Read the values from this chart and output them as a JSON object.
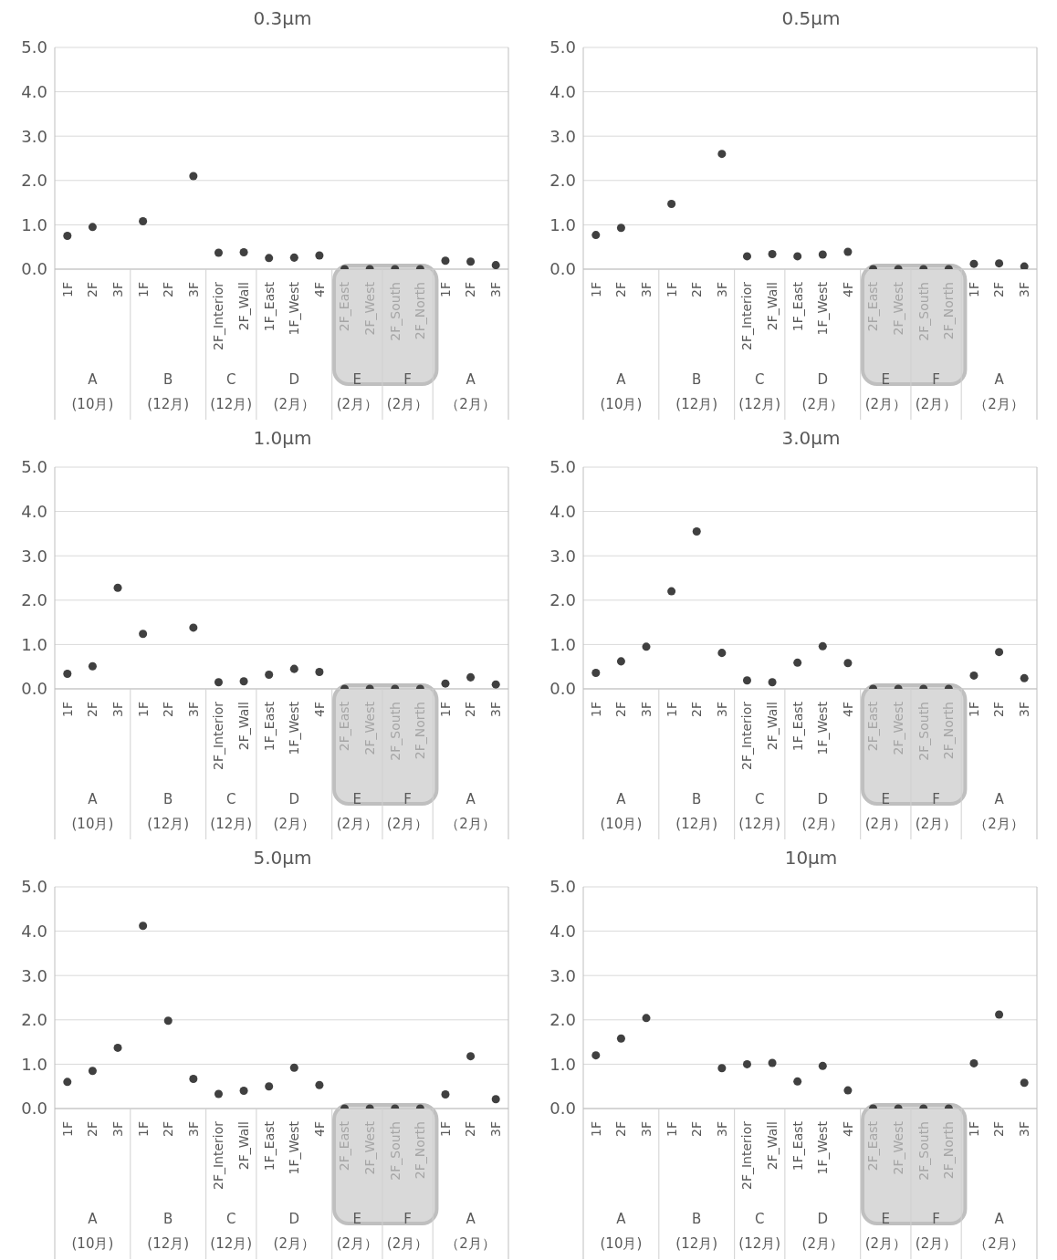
{
  "chart_data": [
    {
      "type": "scatter",
      "title": "0.3μm",
      "categories": [
        "1F",
        "2F",
        "3F",
        "1F",
        "2F",
        "3F",
        "2F_Interior",
        "2F_Wall",
        "1F_East",
        "1F_West",
        "4F",
        "2F_East",
        "2F_West",
        "2F_South",
        "2F_North",
        "1F",
        "2F",
        "3F"
      ],
      "values": [
        0.75,
        0.95,
        null,
        1.08,
        null,
        2.1,
        0.37,
        0.38,
        0.25,
        0.26,
        0.31,
        0,
        0,
        0,
        0,
        0.19,
        0.17,
        0.09
      ],
      "color": "#404040",
      "marker": "circle",
      "ylim": [
        0,
        5
      ],
      "yticks": [
        {
          "value": 0,
          "label": "0.0"
        },
        {
          "value": 1,
          "label": "1.0"
        },
        {
          "value": 2,
          "label": "2.0"
        },
        {
          "value": 3,
          "label": "3.0"
        },
        {
          "value": 4,
          "label": "4.0"
        },
        {
          "value": 5,
          "label": "5.0"
        }
      ],
      "grid": "y",
      "annotations": [
        "A\n(10月)",
        "B\n(12月)",
        "C\n(12月)",
        "D\n(2月）",
        "E\n(2月）",
        "F\n(2月）",
        "A\n（2月）"
      ]
    },
    {
      "type": "scatter",
      "title": "0.5μm",
      "categories": [
        "1F",
        "2F",
        "3F",
        "1F",
        "2F",
        "3F",
        "2F_Interior",
        "2F_Wall",
        "1F_East",
        "1F_West",
        "4F",
        "2F_East",
        "2F_West",
        "2F_South",
        "2F_North",
        "1F",
        "2F",
        "3F"
      ],
      "values": [
        0.77,
        0.93,
        null,
        1.47,
        null,
        2.6,
        0.29,
        0.34,
        0.29,
        0.33,
        0.39,
        0,
        0,
        0,
        0,
        0.12,
        0.13,
        0.06
      ],
      "color": "#404040",
      "marker": "circle",
      "ylim": [
        0,
        5
      ],
      "yticks": [
        {
          "value": 0,
          "label": "0.0"
        },
        {
          "value": 1,
          "label": "1.0"
        },
        {
          "value": 2,
          "label": "2.0"
        },
        {
          "value": 3,
          "label": "3.0"
        },
        {
          "value": 4,
          "label": "4.0"
        },
        {
          "value": 5,
          "label": "5.0"
        }
      ],
      "grid": "y",
      "annotations": [
        "A\n(10月)",
        "B\n(12月)",
        "C\n(12月)",
        "D\n(2月）",
        "E\n(2月）",
        "F\n(2月）",
        "A\n（2月）"
      ]
    },
    {
      "type": "scatter",
      "title": "1.0μm",
      "categories": [
        "1F",
        "2F",
        "3F",
        "1F",
        "2F",
        "3F",
        "2F_Interior",
        "2F_Wall",
        "1F_East",
        "1F_West",
        "4F",
        "2F_East",
        "2F_West",
        "2F_South",
        "2F_North",
        "1F",
        "2F",
        "3F"
      ],
      "values": [
        0.34,
        0.51,
        2.28,
        1.24,
        null,
        1.38,
        0.15,
        0.17,
        0.32,
        0.45,
        0.38,
        0,
        0,
        0,
        0,
        0.12,
        0.26,
        0.1
      ],
      "color": "#404040",
      "marker": "circle",
      "ylim": [
        0,
        5
      ],
      "yticks": [
        {
          "value": 0,
          "label": "0.0"
        },
        {
          "value": 1,
          "label": "1.0"
        },
        {
          "value": 2,
          "label": "2.0"
        },
        {
          "value": 3,
          "label": "3.0"
        },
        {
          "value": 4,
          "label": "4.0"
        },
        {
          "value": 5,
          "label": "5.0"
        }
      ],
      "grid": "y",
      "annotations": [
        "A\n(10月)",
        "B\n(12月)",
        "C\n(12月)",
        "D\n(2月）",
        "E\n(2月）",
        "F\n(2月）",
        "A\n（2月）"
      ]
    },
    {
      "type": "scatter",
      "title": "3.0μm",
      "categories": [
        "1F",
        "2F",
        "3F",
        "1F",
        "2F",
        "3F",
        "2F_Interior",
        "2F_Wall",
        "1F_East",
        "1F_West",
        "4F",
        "2F_East",
        "2F_West",
        "2F_South",
        "2F_North",
        "1F",
        "2F",
        "3F"
      ],
      "values": [
        0.36,
        0.62,
        0.95,
        2.2,
        3.55,
        0.81,
        0.19,
        0.15,
        0.59,
        0.96,
        0.58,
        0,
        0,
        0,
        0,
        0.3,
        0.83,
        0.24
      ],
      "color": "#404040",
      "marker": "circle",
      "ylim": [
        0,
        5
      ],
      "yticks": [
        {
          "value": 0,
          "label": "0.0"
        },
        {
          "value": 1,
          "label": "1.0"
        },
        {
          "value": 2,
          "label": "2.0"
        },
        {
          "value": 3,
          "label": "3.0"
        },
        {
          "value": 4,
          "label": "4.0"
        },
        {
          "value": 5,
          "label": "5.0"
        }
      ],
      "grid": "y",
      "annotations": [
        "A\n(10月)",
        "B\n(12月)",
        "C\n(12月)",
        "D\n(2月）",
        "E\n(2月）",
        "F\n(2月）",
        "A\n（2月）"
      ]
    },
    {
      "type": "scatter",
      "title": "5.0μm",
      "categories": [
        "1F",
        "2F",
        "3F",
        "1F",
        "2F",
        "3F",
        "2F_Interior",
        "2F_Wall",
        "1F_East",
        "1F_West",
        "4F",
        "2F_East",
        "2F_West",
        "2F_South",
        "2F_North",
        "1F",
        "2F",
        "3F"
      ],
      "values": [
        0.6,
        0.85,
        1.37,
        4.12,
        1.98,
        0.67,
        0.33,
        0.4,
        0.5,
        0.92,
        0.53,
        0,
        0,
        0,
        0,
        0.32,
        1.18,
        0.21
      ],
      "color": "#404040",
      "marker": "circle",
      "ylim": [
        0,
        5
      ],
      "yticks": [
        {
          "value": 0,
          "label": "0.0"
        },
        {
          "value": 1,
          "label": "1.0"
        },
        {
          "value": 2,
          "label": "2.0"
        },
        {
          "value": 3,
          "label": "3.0"
        },
        {
          "value": 4,
          "label": "4.0"
        },
        {
          "value": 5,
          "label": "5.0"
        }
      ],
      "grid": "y",
      "annotations": [
        "A\n(10月)",
        "B\n(12月)",
        "C\n(12月)",
        "D\n(2月）",
        "E\n(2月）",
        "F\n(2月）",
        "A\n（2月）"
      ]
    },
    {
      "type": "scatter",
      "title": "10μm",
      "categories": [
        "1F",
        "2F",
        "3F",
        "1F",
        "2F",
        "3F",
        "2F_Interior",
        "2F_Wall",
        "1F_East",
        "1F_West",
        "4F",
        "2F_East",
        "2F_West",
        "2F_South",
        "2F_North",
        "1F",
        "2F",
        "3F"
      ],
      "values": [
        1.2,
        1.58,
        2.04,
        null,
        null,
        0.91,
        1.0,
        1.03,
        0.61,
        0.96,
        0.41,
        0,
        0,
        0,
        0,
        1.02,
        2.12,
        0.58
      ],
      "color": "#404040",
      "marker": "circle",
      "ylim": [
        0,
        5
      ],
      "yticks": [
        {
          "value": 0,
          "label": "0.0"
        },
        {
          "value": 1,
          "label": "1.0"
        },
        {
          "value": 2,
          "label": "2.0"
        },
        {
          "value": 3,
          "label": "3.0"
        },
        {
          "value": 4,
          "label": "4.0"
        },
        {
          "value": 5,
          "label": "5.0"
        }
      ],
      "grid": "y",
      "annotations": [
        "A\n(10月)",
        "B\n(12月)",
        "C\n(12月)",
        "D\n(2月）",
        "E\n(2月）",
        "F\n(2月）",
        "A\n（2月）"
      ]
    }
  ]
}
